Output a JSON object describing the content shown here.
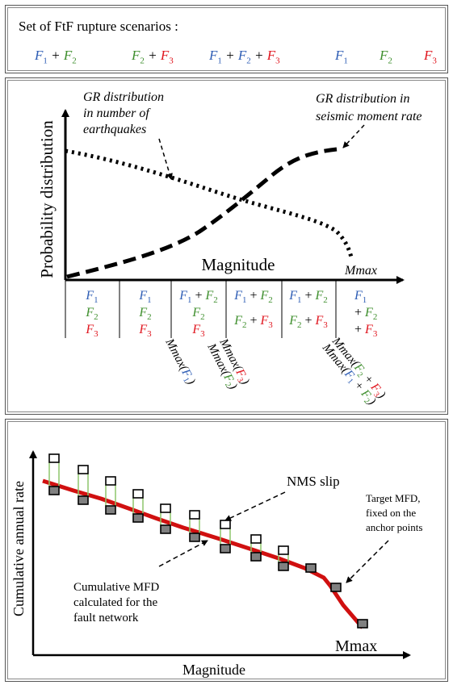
{
  "panel1": {
    "title": "Set of FtF rupture scenarios :",
    "scenarios": [
      {
        "terms": [
          {
            "f": "F",
            "sub": "1",
            "color": "#2f5eb5"
          },
          {
            "f": "F",
            "sub": "2",
            "color": "#3f8f2e"
          }
        ]
      },
      {
        "terms": [
          {
            "f": "F",
            "sub": "2",
            "color": "#3f8f2e"
          },
          {
            "f": "F",
            "sub": "3",
            "color": "#e0161f"
          }
        ]
      },
      {
        "terms": [
          {
            "f": "F",
            "sub": "1",
            "color": "#2f5eb5"
          },
          {
            "f": "F",
            "sub": "2",
            "color": "#2f5eb5"
          },
          {
            "f": "F",
            "sub": "3",
            "color": "#e0161f"
          }
        ]
      },
      {
        "terms": [
          {
            "f": "F",
            "sub": "1",
            "color": "#2f5eb5"
          }
        ]
      },
      {
        "terms": [
          {
            "f": "F",
            "sub": "2",
            "color": "#3f8f2e"
          }
        ]
      },
      {
        "terms": [
          {
            "f": "F",
            "sub": "3",
            "color": "#e0161f"
          }
        ]
      }
    ]
  },
  "panel2": {
    "ylabel": "Probability distribution",
    "xlabel": "Magnitude",
    "mmax_label": "Mmax",
    "annot_left": [
      "GR distribution",
      "in number of",
      "earthquakes"
    ],
    "annot_right": [
      "GR distribution in",
      "seismic moment rate"
    ],
    "rotated_labels": [
      "Mmax(F1)",
      "Mmax(F3)",
      "Mmax(F2)",
      "Mmax(F2 + F3)",
      "Mmax(F1 + F2)"
    ]
  },
  "panel3": {
    "ylabel": "Cumulative annual rate",
    "xlabel": "Magnitude",
    "mmax_label": "Mmax",
    "nms_label": "NMS slip",
    "cumulative_label": [
      "Cumulative MFD",
      "calculated for the",
      "fault network"
    ],
    "target_label": [
      "Target MFD,",
      "fixed on the",
      "anchor points"
    ]
  },
  "colors": {
    "f1": "#2f5eb5",
    "f2": "#3f8f2e",
    "f3": "#e0161f",
    "target_line": "#d01010",
    "nms_bar": "#8dc66b",
    "marker_fill": "#808080"
  }
}
